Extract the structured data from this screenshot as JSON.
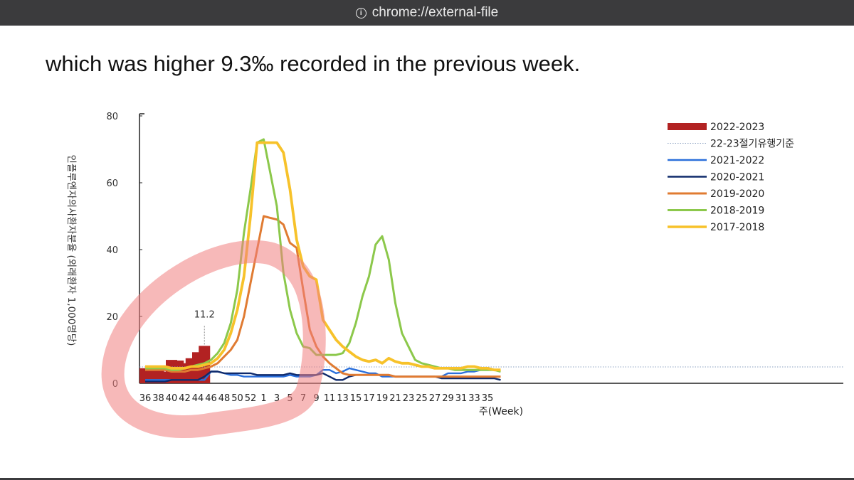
{
  "browser": {
    "info_icon": "info-circle-icon",
    "url": "chrome://external-file"
  },
  "caption": "which was higher 9.3‰  recorded in the previous week.",
  "colors": {
    "bars": "#b22222",
    "threshold": "#8aa0c0",
    "s2021": "#2a6fdb",
    "s2020": "#0f2a6b",
    "s2019": "#e07b32",
    "s2018": "#8cc84b",
    "s2017": "#f7c22a",
    "highlight": "#f08080"
  },
  "chart_data": {
    "type": "line",
    "ylabel": "인플루엔자의사환자분율 (외래환자 1,000명당)",
    "xlabel": "주(Week)",
    "ylim": [
      0,
      80
    ],
    "yticks": [
      "0",
      "20",
      "40",
      "60",
      "80"
    ],
    "xtick_labels": [
      "36",
      "38",
      "40",
      "42",
      "44",
      "46",
      "48",
      "50",
      "52",
      "1",
      "3",
      "5",
      "7",
      "9",
      "11",
      "13",
      "15",
      "17",
      "19",
      "21",
      "23",
      "25",
      "27",
      "29",
      "31",
      "33",
      "35"
    ],
    "annotation": "11.2",
    "legend": [
      "2022-2023",
      "22-23절기유행기준",
      "2021-2022",
      "2020-2021",
      "2019-2020",
      "2018-2019",
      "2017-2018"
    ],
    "bars": {
      "name": "2022-2023",
      "weeks": [
        "36",
        "37",
        "38",
        "39",
        "40",
        "41",
        "42",
        "43",
        "44",
        "45"
      ],
      "values": [
        4.5,
        4.0,
        3.8,
        3.5,
        7.0,
        6.8,
        6.0,
        7.5,
        9.3,
        11.2
      ]
    },
    "threshold": {
      "name": "22-23절기유행기준",
      "value": 4.9
    },
    "series": [
      {
        "name": "2021-2022",
        "values": [
          1,
          1,
          1,
          1,
          1,
          1,
          1,
          1,
          1,
          1,
          3.5,
          3.5,
          3,
          2.5,
          2.5,
          2,
          2,
          2,
          2,
          2,
          2,
          2,
          2.5,
          2,
          2,
          2,
          2.5,
          4,
          4,
          3,
          3.5,
          4.5,
          4,
          3.5,
          3,
          3,
          2,
          2,
          2,
          2,
          2,
          2,
          2,
          2,
          2,
          2,
          3,
          3,
          3,
          3.5,
          3.5,
          4,
          4,
          4,
          4
        ]
      },
      {
        "name": "2020-2021",
        "values": [
          0.5,
          0.5,
          0.5,
          0.5,
          1,
          1,
          1,
          1,
          1,
          2,
          3.5,
          3.5,
          3,
          3,
          3,
          3,
          3,
          2.5,
          2.5,
          2.5,
          2.5,
          2.5,
          3,
          2.5,
          2.5,
          2.5,
          2.5,
          3,
          2,
          1,
          1,
          2,
          2.5,
          2.5,
          2.5,
          2.5,
          2.5,
          2.5,
          2,
          2,
          2,
          2,
          2,
          2,
          2,
          1.5,
          1.5,
          1.5,
          1.5,
          1.5,
          1.5,
          1.5,
          1.5,
          1.5,
          1
        ]
      },
      {
        "name": "2019-2020",
        "values": [
          4,
          4,
          4,
          4,
          3.5,
          3.5,
          3.5,
          4,
          4,
          4.5,
          5,
          6,
          8,
          10,
          13,
          20,
          30,
          40,
          50,
          49.5,
          49,
          47.5,
          42,
          40.5,
          28,
          16,
          11,
          8,
          6,
          4.5,
          3,
          2.5,
          2.5,
          2.5,
          2.5,
          2.5,
          2.5,
          2.5,
          2,
          2,
          2,
          2,
          2,
          2,
          2,
          2,
          2,
          2,
          2,
          2,
          2,
          2,
          2,
          2,
          2
        ]
      },
      {
        "name": "2018-2019",
        "values": [
          4.5,
          4.5,
          4.5,
          4.5,
          4,
          4,
          4.5,
          5,
          5.5,
          6,
          7,
          9,
          12,
          18,
          28,
          45,
          58,
          72,
          73,
          63,
          53,
          33,
          22,
          15,
          11,
          10.5,
          8.5,
          8.5,
          8.5,
          8.5,
          9,
          12,
          18,
          26,
          32,
          41.5,
          44,
          37,
          24,
          15,
          11,
          7,
          6,
          5.5,
          5,
          4.5,
          4.5,
          4,
          4,
          4,
          4,
          4,
          4,
          4,
          3.5
        ]
      },
      {
        "name": "2017-2018",
        "values": [
          5,
          5,
          5,
          5,
          4.5,
          4.5,
          4.5,
          5,
          5,
          5.5,
          6,
          7.5,
          10,
          15,
          22,
          32,
          50,
          72,
          72,
          72,
          72,
          69,
          58,
          43,
          35,
          32,
          31,
          19,
          16,
          13,
          11,
          9.5,
          8,
          7,
          6.5,
          7,
          6,
          7.5,
          6.5,
          6,
          6,
          5.5,
          5,
          5,
          4.5,
          4.5,
          4.5,
          4.5,
          4.5,
          5,
          5,
          4.5,
          4.5,
          4,
          4
        ]
      }
    ]
  }
}
